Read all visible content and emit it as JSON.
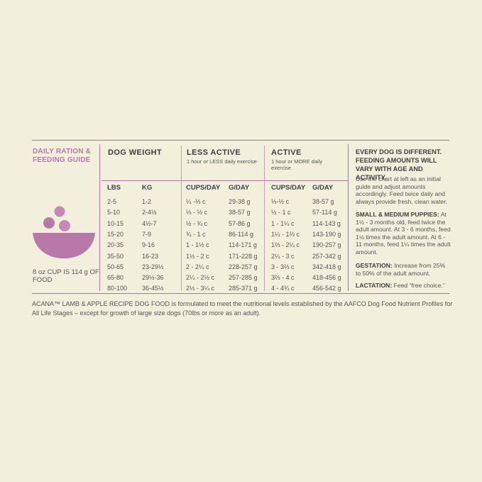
{
  "sidebar": {
    "title": "DAILY RATION & FEEDING GUIDE",
    "cup_note": "8 oz CUP IS 114 g OF FOOD"
  },
  "table": {
    "groups": [
      {
        "title": "DOG WEIGHT"
      },
      {
        "title": "LESS ACTIVE",
        "subtitle": "1 hour or LESS daily exercise"
      },
      {
        "title": "ACTIVE",
        "subtitle": "1 hour or MORE daily exercise"
      }
    ],
    "columns": [
      "LBS",
      "KG",
      "CUPS/DAY",
      "G/DAY",
      "CUPS/DAY",
      "G/DAY"
    ],
    "rows": [
      [
        "2-5",
        "1-2",
        "¼ -⅓ c",
        "29-38 g",
        "⅓-½ c",
        "38-57 g"
      ],
      [
        "5-10",
        "2-4½",
        "⅓ - ½ c",
        "38-57 g",
        "½ - 1 c",
        "57-114 g"
      ],
      [
        "10-15",
        "4½-7",
        "½ - ¾ c",
        "57-86 g",
        "1 - 1¼ c",
        "114-143 g"
      ],
      [
        "15-20",
        "7-9",
        "¾ - 1 c",
        "86-114 g",
        "1¼ - 1⅔ c",
        "143-190 g"
      ],
      [
        "20-35",
        "9-16",
        "1 - 1½ c",
        "114-171 g",
        "1⅔ - 2¼ c",
        "190-257 g"
      ],
      [
        "35-50",
        "16-23",
        "1½ - 2 c",
        "171-228 g",
        "2¼ - 3 c",
        "257-342 g"
      ],
      [
        "50-65",
        "23-29½",
        "2 - 2¼ c",
        "228-257 g",
        "3 - 3⅔ c",
        "342-418 g"
      ],
      [
        "65-80",
        "29½-36",
        "2¼ - 2½ c",
        "257-285 g",
        "3⅔ - 4 c",
        "418-456 g"
      ],
      [
        "80-100",
        "36-45½",
        "2½ - 3¼ c",
        "285-371 g",
        "4 - 4¾ c",
        "456-542 g"
      ]
    ]
  },
  "notes": {
    "heading": "EVERY DOG IS DIFFERENT. FEEDING AMOUNTS WILL VARY WITH AGE AND ACTIVITY.",
    "intro": "Use the chart at left as an initial guide and adjust amounts accordingly. Feed twice daily and always provide fresh, clean water.",
    "puppies_label": "SMALL & MEDIUM PUPPIES:",
    "puppies_text": "At 1½ - 3 months old, feed twice the adult amount. At 3 - 6 months, feed 1½ times the adult amount. At 6 - 11 months, feed 1¼ times the adult amount.",
    "gestation_label": "GESTATION:",
    "gestation_text": "Increase from 25% to 50% of the adult amount.",
    "lactation_label": "LACTATION:",
    "lactation_text": "Feed “free choice.”"
  },
  "footer": "ACANA™ LAMB & APPLE RECIPE DOG FOOD is formulated to meet the nutritional levels established by the AAFCO Dog Food Nutrient Profiles for All Life Stages – except for growth of large size dogs (70lbs or more as an adult)."
}
